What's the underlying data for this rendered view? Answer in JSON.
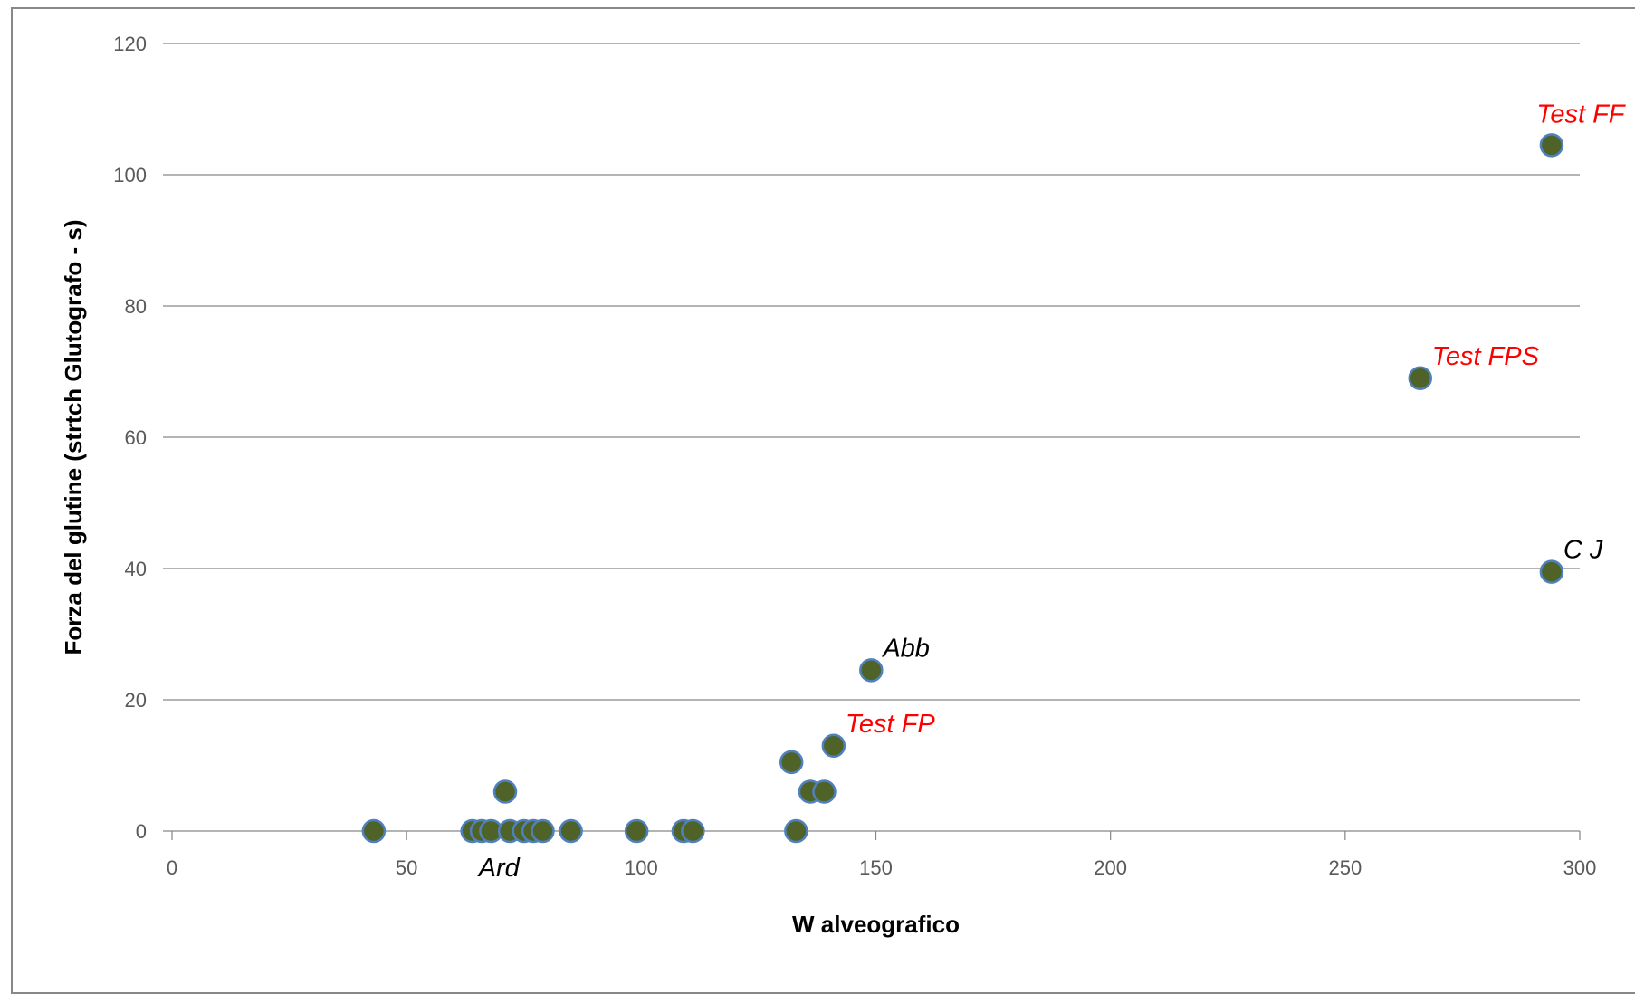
{
  "chart_data": {
    "type": "scatter",
    "title": "",
    "xlabel": "W alveografico",
    "ylabel": "Forza del glutine (strtch Glutografo - s)",
    "xlim": [
      0,
      300
    ],
    "ylim": [
      0,
      120
    ],
    "x_ticks": [
      0,
      50,
      100,
      150,
      200,
      250,
      300
    ],
    "y_ticks": [
      0,
      20,
      40,
      60,
      80,
      100,
      120
    ],
    "grid": "horizontal",
    "legend": "none",
    "marker_color": "#4f6228",
    "marker_edge_color": "#4f81bd",
    "points": [
      {
        "x": 43,
        "y": 0
      },
      {
        "x": 64,
        "y": 0
      },
      {
        "x": 66,
        "y": 0
      },
      {
        "x": 68,
        "y": 0
      },
      {
        "x": 71,
        "y": 6
      },
      {
        "x": 72,
        "y": 0
      },
      {
        "x": 75,
        "y": 0
      },
      {
        "x": 77,
        "y": 0
      },
      {
        "x": 79,
        "y": 0
      },
      {
        "x": 85,
        "y": 0
      },
      {
        "x": 99,
        "y": 0
      },
      {
        "x": 109,
        "y": 0
      },
      {
        "x": 111,
        "y": 0
      },
      {
        "x": 132,
        "y": 10.5
      },
      {
        "x": 133,
        "y": 0
      },
      {
        "x": 136,
        "y": 6
      },
      {
        "x": 139,
        "y": 6
      },
      {
        "x": 141,
        "y": 13
      },
      {
        "x": 149,
        "y": 24.5
      },
      {
        "x": 266,
        "y": 69
      },
      {
        "x": 294,
        "y": 39.5
      },
      {
        "x": 294,
        "y": 104.5
      }
    ],
    "annotations": [
      {
        "text": "Test FF",
        "x": 294,
        "y": 104.5,
        "color": "#ff0000",
        "position": "above"
      },
      {
        "text": "Test FPS",
        "x": 266,
        "y": 69,
        "color": "#ff0000",
        "position": "above-right"
      },
      {
        "text": "C J",
        "x": 294,
        "y": 39.5,
        "color": "#000000",
        "position": "above-right"
      },
      {
        "text": "Abb",
        "x": 149,
        "y": 24.5,
        "color": "#000000",
        "position": "above-right"
      },
      {
        "text": "Test FP",
        "x": 141,
        "y": 13,
        "color": "#ff0000",
        "position": "above-right"
      },
      {
        "text": "Ard",
        "x": 72,
        "y": 0,
        "color": "#000000",
        "position": "below"
      }
    ]
  }
}
